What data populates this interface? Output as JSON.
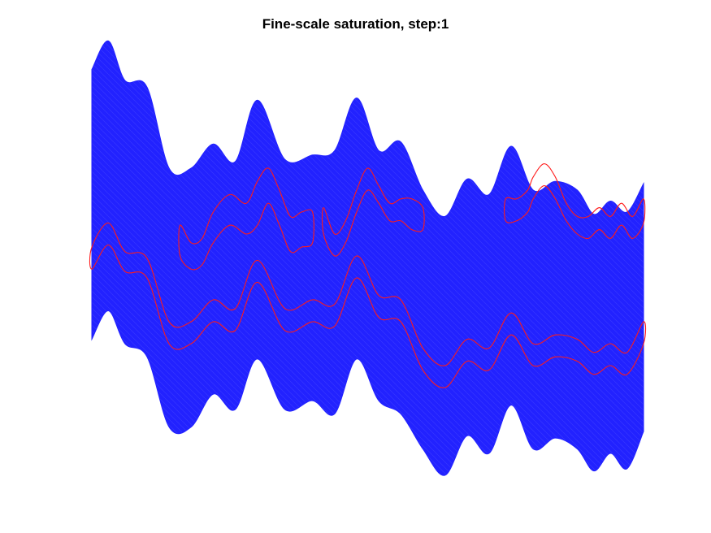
{
  "chart_data": {
    "type": "area",
    "title": "Fine-scale saturation, step:1",
    "xlabel": "",
    "ylabel": "",
    "grid": false,
    "axes_visible": false,
    "x_range": [
      0,
      1
    ],
    "y_range": [
      -1,
      1
    ],
    "domain": {
      "name": "reservoir-domain",
      "fill_color": "#2222ff",
      "top_boundary": {
        "x": [
          0.0,
          0.03,
          0.06,
          0.1,
          0.14,
          0.18,
          0.22,
          0.26,
          0.3,
          0.35,
          0.4,
          0.44,
          0.48,
          0.52,
          0.56,
          0.6,
          0.64,
          0.68,
          0.72,
          0.76,
          0.8,
          0.84,
          0.88,
          0.91,
          0.94,
          0.97,
          1.0
        ],
        "y": [
          0.85,
          0.98,
          0.8,
          0.77,
          0.4,
          0.4,
          0.51,
          0.43,
          0.71,
          0.44,
          0.46,
          0.48,
          0.72,
          0.48,
          0.52,
          0.3,
          0.18,
          0.35,
          0.28,
          0.5,
          0.3,
          0.34,
          0.3,
          0.19,
          0.25,
          0.2,
          0.33
        ]
      },
      "bottom_boundary": {
        "x": [
          0.0,
          0.03,
          0.06,
          0.1,
          0.14,
          0.18,
          0.22,
          0.26,
          0.3,
          0.35,
          0.4,
          0.44,
          0.48,
          0.52,
          0.56,
          0.6,
          0.64,
          0.68,
          0.72,
          0.76,
          0.8,
          0.84,
          0.88,
          0.91,
          0.94,
          0.97,
          1.0
        ],
        "y": [
          -0.38,
          -0.25,
          -0.4,
          -0.46,
          -0.78,
          -0.78,
          -0.63,
          -0.7,
          -0.47,
          -0.7,
          -0.66,
          -0.72,
          -0.47,
          -0.66,
          -0.72,
          -0.88,
          -1.0,
          -0.82,
          -0.9,
          -0.68,
          -0.88,
          -0.83,
          -0.88,
          -0.98,
          -0.9,
          -0.97,
          -0.8
        ]
      }
    },
    "series": [
      {
        "color": "#ff1a1a",
        "closed": true,
        "x": [
          0.0,
          0.03,
          0.06,
          0.1,
          0.14,
          0.18,
          0.22,
          0.26,
          0.3,
          0.35,
          0.4,
          0.44,
          0.48,
          0.52,
          0.56,
          0.6,
          0.64,
          0.68,
          0.72,
          0.76,
          0.8,
          0.84,
          0.88,
          0.91,
          0.94,
          0.97,
          1.0,
          1.0,
          0.97,
          0.94,
          0.91,
          0.88,
          0.84,
          0.8,
          0.76,
          0.72,
          0.68,
          0.64,
          0.6,
          0.56,
          0.52,
          0.48,
          0.44,
          0.4,
          0.35,
          0.3,
          0.26,
          0.22,
          0.18,
          0.14,
          0.1,
          0.06,
          0.03,
          0.0
        ],
        "y": [
          0.04,
          0.15,
          0.02,
          -0.01,
          -0.3,
          -0.3,
          -0.2,
          -0.24,
          -0.02,
          -0.24,
          -0.2,
          -0.22,
          0.0,
          -0.18,
          -0.2,
          -0.42,
          -0.5,
          -0.38,
          -0.42,
          -0.26,
          -0.4,
          -0.36,
          -0.38,
          -0.44,
          -0.4,
          -0.44,
          -0.3,
          -0.4,
          -0.54,
          -0.5,
          -0.54,
          -0.48,
          -0.46,
          -0.5,
          -0.36,
          -0.52,
          -0.48,
          -0.6,
          -0.52,
          -0.3,
          -0.28,
          -0.1,
          -0.32,
          -0.3,
          -0.34,
          -0.12,
          -0.34,
          -0.3,
          -0.4,
          -0.4,
          -0.1,
          -0.07,
          0.05,
          -0.06
        ]
      },
      {
        "color": "#ff1a1a",
        "closed": true,
        "x": [
          0.16,
          0.18,
          0.2,
          0.22,
          0.25,
          0.28,
          0.3,
          0.32,
          0.34,
          0.36,
          0.38,
          0.4,
          0.4,
          0.38,
          0.36,
          0.34,
          0.32,
          0.3,
          0.28,
          0.25,
          0.22,
          0.2,
          0.18,
          0.16
        ],
        "y": [
          0.14,
          0.06,
          0.08,
          0.2,
          0.28,
          0.24,
          0.34,
          0.4,
          0.3,
          0.18,
          0.2,
          0.2,
          0.06,
          0.04,
          0.02,
          0.14,
          0.24,
          0.14,
          0.1,
          0.14,
          0.06,
          -0.04,
          -0.06,
          0.0
        ]
      },
      {
        "color": "#ff1a1a",
        "closed": true,
        "x": [
          0.42,
          0.44,
          0.46,
          0.48,
          0.5,
          0.52,
          0.54,
          0.56,
          0.58,
          0.6,
          0.6,
          0.58,
          0.56,
          0.54,
          0.52,
          0.5,
          0.48,
          0.46,
          0.44,
          0.42
        ],
        "y": [
          0.22,
          0.1,
          0.16,
          0.3,
          0.4,
          0.32,
          0.24,
          0.26,
          0.26,
          0.22,
          0.12,
          0.12,
          0.16,
          0.16,
          0.24,
          0.3,
          0.2,
          0.06,
          0.0,
          0.1
        ]
      },
      {
        "color": "#ff1a1a",
        "closed": true,
        "x": [
          0.75,
          0.77,
          0.79,
          0.8,
          0.82,
          0.84,
          0.86,
          0.88,
          0.9,
          0.92,
          0.94,
          0.96,
          0.98,
          1.0,
          1.0,
          0.98,
          0.96,
          0.94,
          0.92,
          0.9,
          0.88,
          0.86,
          0.84,
          0.82,
          0.8,
          0.79,
          0.77,
          0.75
        ],
        "y": [
          0.26,
          0.26,
          0.3,
          0.36,
          0.42,
          0.36,
          0.24,
          0.18,
          0.18,
          0.22,
          0.18,
          0.24,
          0.18,
          0.26,
          0.15,
          0.08,
          0.14,
          0.08,
          0.12,
          0.08,
          0.1,
          0.16,
          0.26,
          0.32,
          0.26,
          0.2,
          0.16,
          0.16
        ]
      }
    ]
  }
}
